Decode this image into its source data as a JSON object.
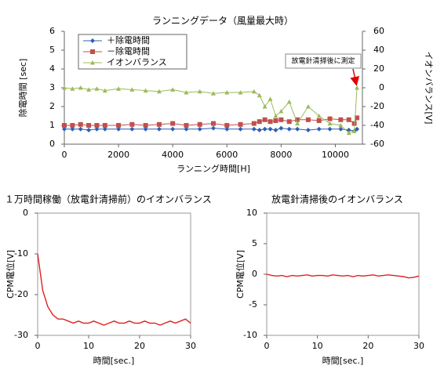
{
  "chart_data": [
    {
      "type": "line",
      "title": "ランニングデータ（風量最大時）",
      "xlabel": "ランニング時間[H]",
      "ylabel": "除電時間 [sec]",
      "y2label": "イオンバランス[V]",
      "annotation": "放電針清掃後に測定",
      "legend": "upper left",
      "grid": false,
      "xlim": [
        0,
        11000
      ],
      "xticks": [
        0,
        2000,
        4000,
        6000,
        8000,
        10000
      ],
      "ylim": [
        0,
        6
      ],
      "yticks": [
        0,
        1,
        2,
        3,
        4,
        5,
        6
      ],
      "y2lim": [
        -60,
        60
      ],
      "y2ticks": [
        -60,
        -40,
        -20,
        0,
        20,
        40,
        60
      ],
      "x": [
        0,
        300,
        600,
        900,
        1200,
        1500,
        2000,
        2500,
        3000,
        3500,
        4000,
        4500,
        5000,
        5500,
        6000,
        6500,
        7000,
        7200,
        7400,
        7600,
        7800,
        8000,
        8300,
        8600,
        9000,
        9400,
        9800,
        10200,
        10500,
        10700,
        10800
      ],
      "series": [
        {
          "name": "＋除電時間",
          "color": "#2f5fb3",
          "marker": "diamond",
          "values": [
            0.8,
            0.8,
            0.8,
            0.75,
            0.8,
            0.8,
            0.8,
            0.8,
            0.8,
            0.8,
            0.8,
            0.8,
            0.8,
            0.85,
            0.8,
            0.8,
            0.8,
            0.75,
            0.8,
            0.8,
            0.75,
            0.85,
            0.8,
            0.8,
            0.75,
            0.8,
            0.8,
            0.8,
            0.75,
            0.7,
            0.8
          ]
        },
        {
          "name": "－除電時間",
          "color": "#c0504d",
          "marker": "square",
          "values": [
            1.0,
            1.0,
            1.05,
            1.0,
            1.0,
            1.0,
            1.0,
            1.05,
            1.0,
            1.05,
            1.1,
            1.0,
            1.05,
            1.1,
            1.0,
            1.05,
            1.1,
            1.2,
            1.3,
            1.2,
            1.25,
            1.3,
            1.2,
            1.3,
            1.3,
            1.25,
            1.35,
            1.3,
            1.3,
            1.1,
            1.4
          ]
        },
        {
          "name": "イオンバランス",
          "color": "#9bbb59",
          "marker": "triangle",
          "axis": "y2",
          "values": [
            0,
            -1,
            0,
            -2,
            -1,
            -3,
            -1,
            -2,
            -3,
            -4,
            -2,
            -5,
            -4,
            -6,
            -5,
            -5,
            -4,
            -8,
            -20,
            -12,
            -30,
            -25,
            -15,
            -38,
            -20,
            -30,
            -38,
            -40,
            -48,
            -46,
            0
          ]
        }
      ]
    },
    {
      "type": "line",
      "title": "１万時間稼働（放電針清掃前）のイオンバランス",
      "xlabel": "時間[sec.]",
      "ylabel": "CPM電位[V]",
      "xlim": [
        0,
        30
      ],
      "xticks": [
        0,
        10,
        20,
        30
      ],
      "ylim": [
        -30,
        0
      ],
      "yticks": [
        -30,
        -20,
        -10,
        0
      ],
      "x": [
        0,
        1,
        2,
        3,
        4,
        5,
        6,
        7,
        8,
        9,
        10,
        11,
        12,
        13,
        14,
        15,
        16,
        17,
        18,
        19,
        20,
        21,
        22,
        23,
        24,
        25,
        26,
        27,
        28,
        29,
        30
      ],
      "series": [
        {
          "color": "#e02020",
          "values": [
            -10,
            -19,
            -23,
            -25,
            -26,
            -26,
            -26.5,
            -27,
            -26.5,
            -27,
            -27,
            -26.5,
            -27,
            -27.5,
            -27,
            -26.5,
            -27,
            -27,
            -26.5,
            -27,
            -27,
            -26.5,
            -27,
            -27,
            -27.5,
            -27,
            -26.5,
            -27,
            -26.5,
            -26,
            -27
          ]
        }
      ]
    },
    {
      "type": "line",
      "title": "放電針清掃後のイオンバランス",
      "xlabel": "時間[sec.]",
      "ylabel": "CPM電位[V]",
      "xlim": [
        0,
        30
      ],
      "xticks": [
        0,
        10,
        20,
        30
      ],
      "ylim": [
        -10,
        10
      ],
      "yticks": [
        -10,
        -5,
        0,
        5,
        10
      ],
      "x": [
        0,
        1,
        2,
        3,
        4,
        5,
        6,
        7,
        8,
        9,
        10,
        11,
        12,
        13,
        14,
        15,
        16,
        17,
        18,
        19,
        20,
        21,
        22,
        23,
        24,
        25,
        26,
        27,
        28,
        29,
        30
      ],
      "series": [
        {
          "color": "#e02020",
          "values": [
            0,
            -0.2,
            -0.3,
            -0.2,
            -0.4,
            -0.2,
            -0.3,
            -0.2,
            -0.1,
            -0.3,
            -0.2,
            -0.2,
            -0.3,
            -0.1,
            -0.2,
            -0.3,
            -0.2,
            -0.4,
            -0.2,
            -0.3,
            -0.2,
            -0.1,
            -0.3,
            -0.2,
            -0.1,
            -0.2,
            -0.3,
            -0.4,
            -0.6,
            -0.5,
            -0.3
          ]
        }
      ]
    }
  ]
}
